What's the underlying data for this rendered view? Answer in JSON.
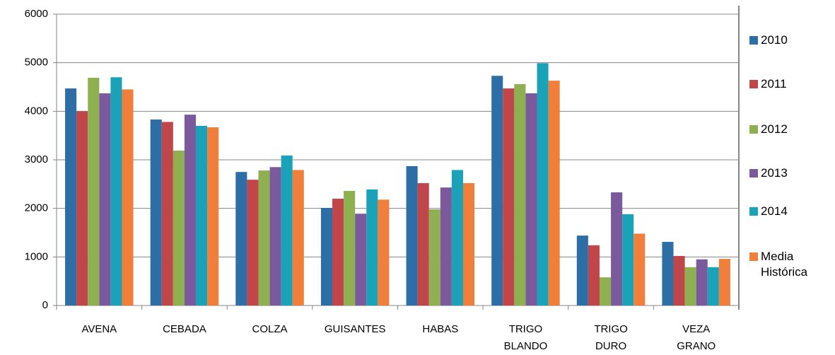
{
  "chart_data": {
    "type": "bar",
    "categories": [
      "AVENA",
      "CEBADA",
      "COLZA",
      "GUISANTES",
      "HABAS",
      "TRIGO BLANDO",
      "TRIGO DURO",
      "VEZA GRANO"
    ],
    "series": [
      {
        "name": "2010",
        "color": "#2e6ea6",
        "values": [
          4470,
          3830,
          2750,
          2010,
          2870,
          4730,
          1440,
          1310
        ]
      },
      {
        "name": "2011",
        "color": "#c0464a",
        "values": [
          4000,
          3780,
          2590,
          2200,
          2520,
          4470,
          1240,
          1020
        ]
      },
      {
        "name": "2012",
        "color": "#8fb050",
        "values": [
          4690,
          3190,
          2780,
          2360,
          1980,
          4560,
          580,
          790
        ]
      },
      {
        "name": "2013",
        "color": "#7a5a9c",
        "values": [
          4370,
          3930,
          2850,
          1890,
          2430,
          4370,
          2330,
          950
        ]
      },
      {
        "name": "2014",
        "color": "#1aa3b8",
        "values": [
          4700,
          3700,
          3090,
          2390,
          2790,
          4990,
          1880,
          790
        ]
      },
      {
        "name": "Media Histórica",
        "color": "#f07f3c",
        "values": [
          4450,
          3670,
          2790,
          2180,
          2520,
          4630,
          1480,
          960
        ]
      }
    ],
    "ylim": [
      0,
      6000
    ],
    "yticks": [
      0,
      1000,
      2000,
      3000,
      4000,
      5000,
      6000
    ],
    "grid": true
  }
}
